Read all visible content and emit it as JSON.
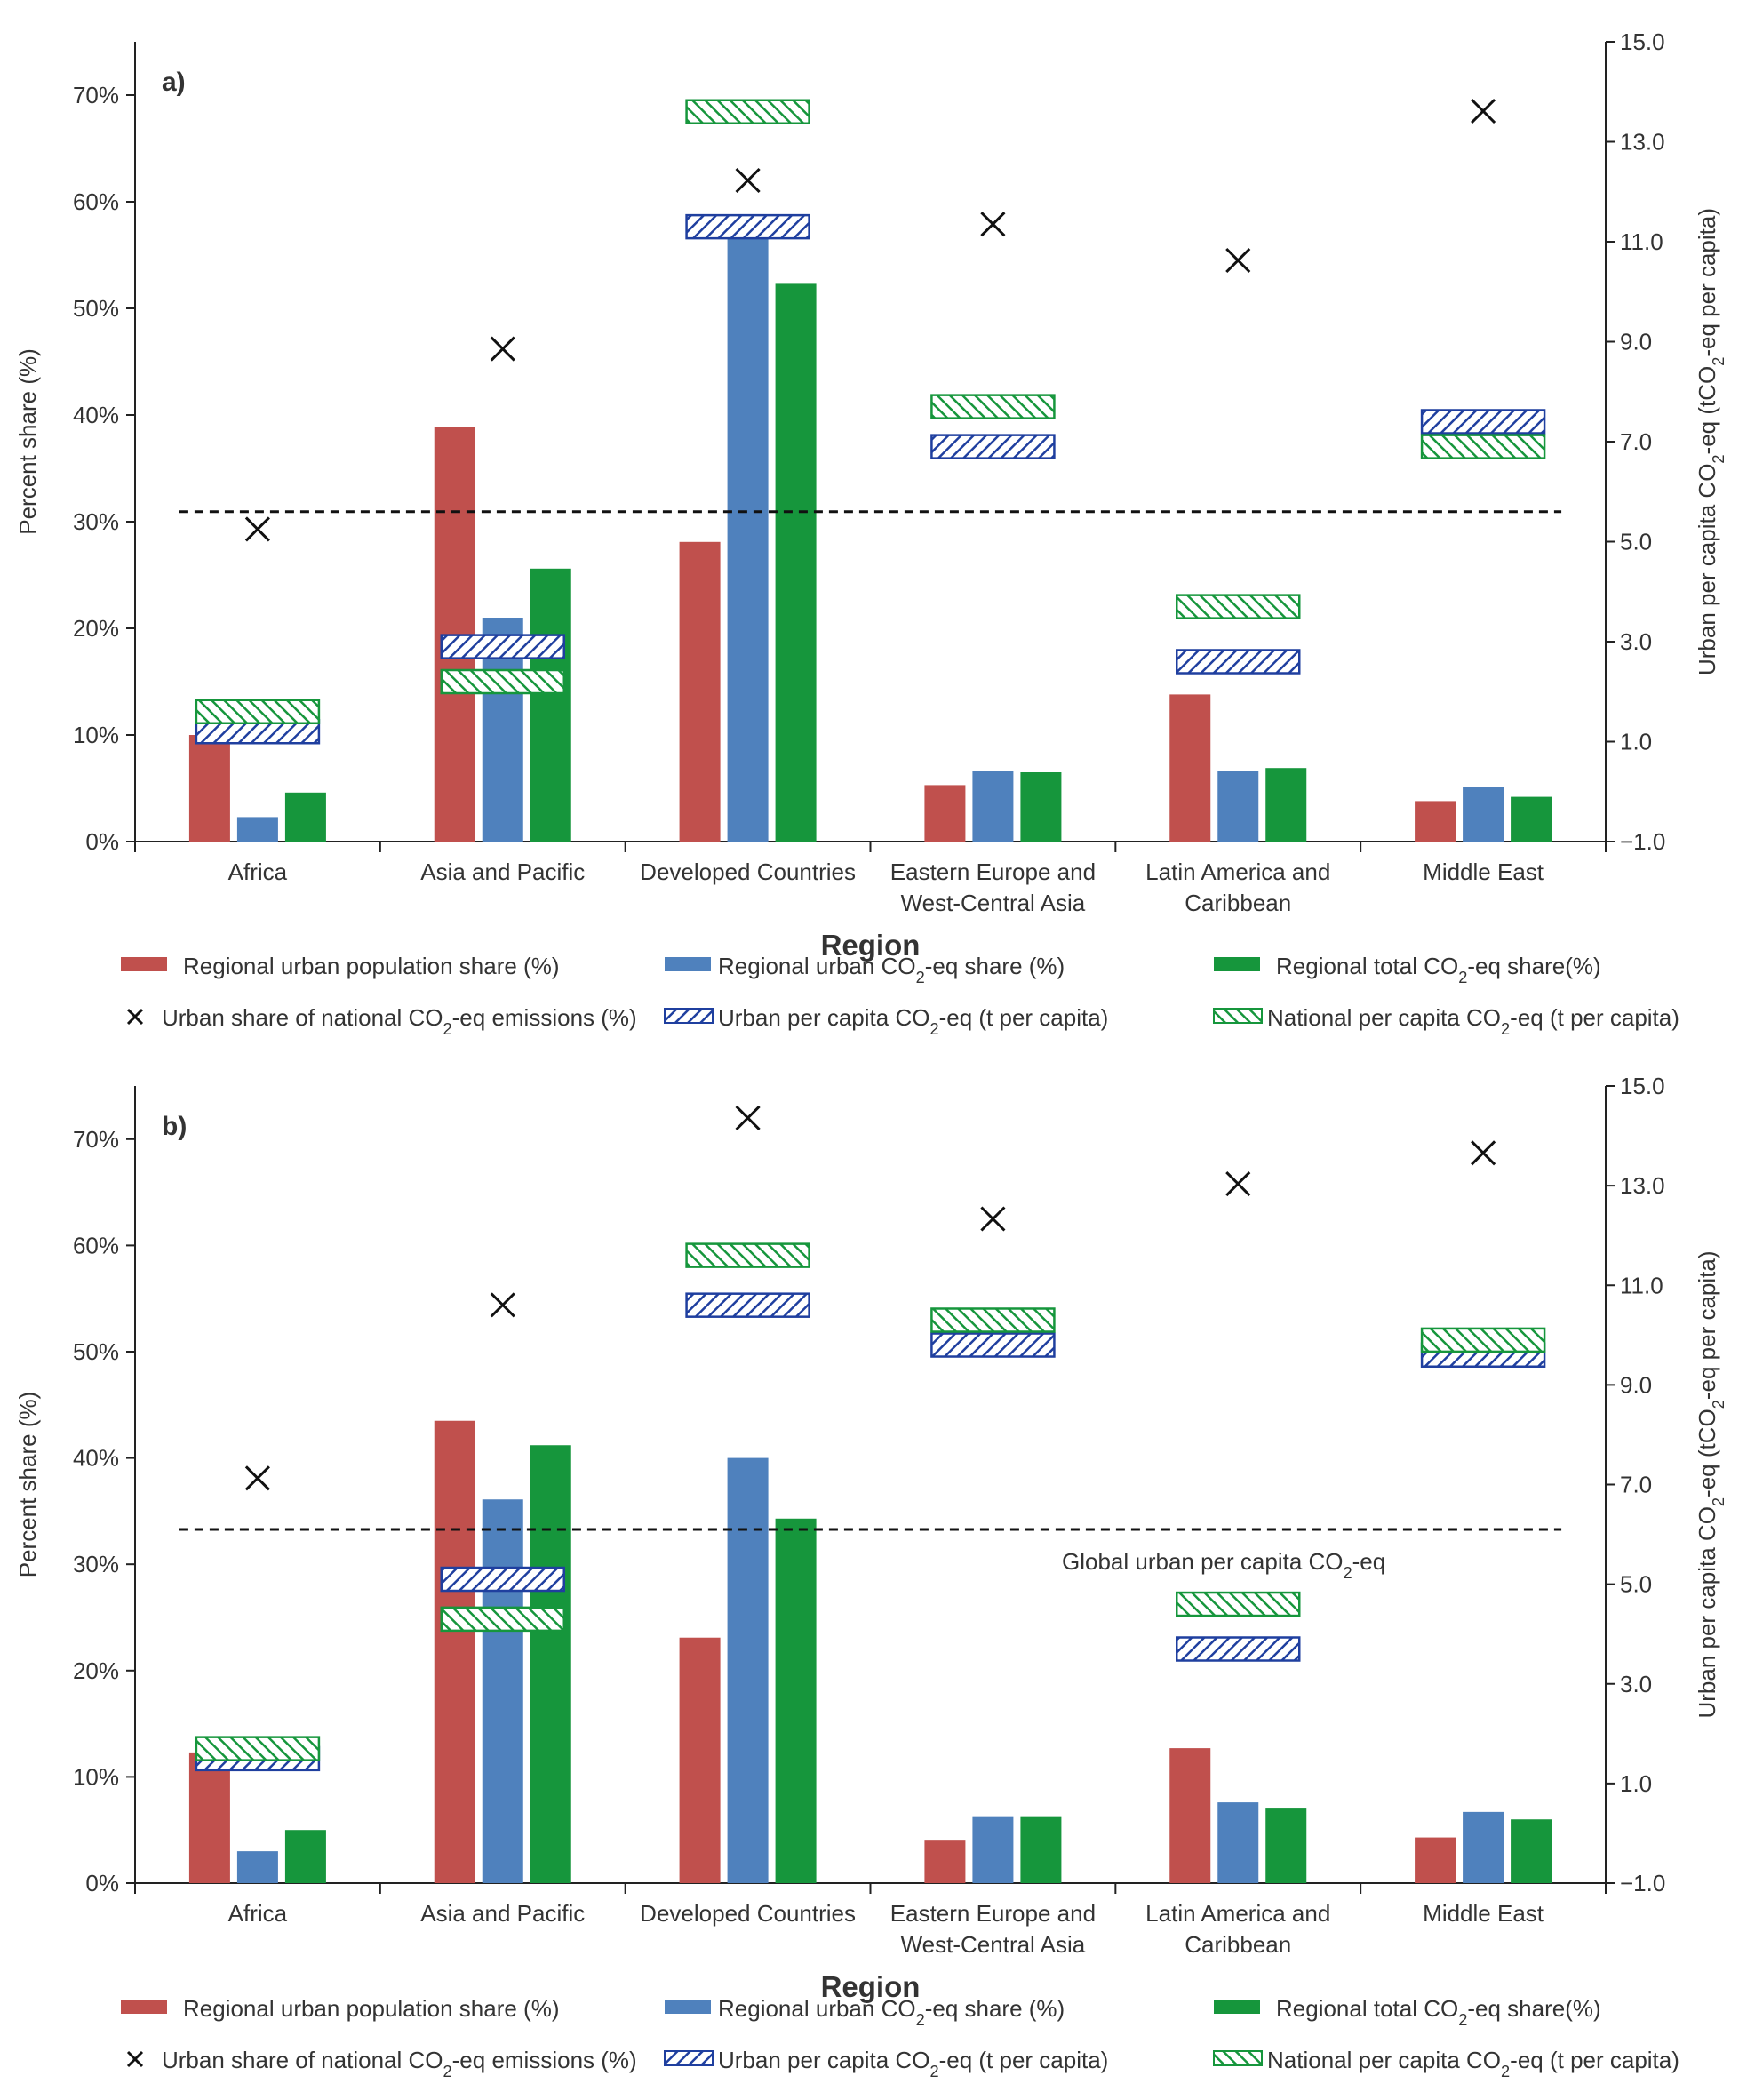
{
  "colors": {
    "population": "#c0504d",
    "urban_share": "#4f81bd",
    "total_share": "#16963c",
    "urban_pc_stroke": "#1f3f9f",
    "national_pc_stroke": "#16963c",
    "cross": "#111111",
    "axis": "#222222",
    "text": "#333333",
    "dashed": "#111111"
  },
  "legend": {
    "population": "Regional urban population share (%)",
    "urban_share": "Regional urban CO₂-eq share (%)",
    "total_share": "Regional total CO₂-eq share(%)",
    "urban_national_share": "Urban share of national CO₂-eq emissions (%)",
    "urban_pc": "Urban per capita CO₂-eq (t per capita)",
    "national_pc": "National per capita CO₂-eq (t per capita)"
  },
  "chart_data": [
    {
      "type": "bar",
      "panel_label": "a)",
      "categories": [
        "Africa",
        "Asia and Pacific",
        "Developed Countries",
        "Eastern Europe and|West-Central Asia",
        "Latin America and|Caribbean",
        "Middle East"
      ],
      "xlabel": "Region",
      "ylabel": "Percent share (%)",
      "y2label": "Urban per capita CO₂-eq (tCO₂-eq per capita)",
      "ylim": [
        0,
        75
      ],
      "yticks": [
        0,
        10,
        20,
        30,
        40,
        50,
        60,
        70
      ],
      "y2lim": [
        -1,
        15
      ],
      "y2ticks": [
        -1,
        1,
        3,
        5,
        7,
        9,
        11,
        13,
        15
      ],
      "y2ticklabels": [
        "−1.0",
        "1.0",
        "3.0",
        "5.0",
        "7.0",
        "9.0",
        "11.0",
        "13.0",
        "15.0"
      ],
      "series": [
        {
          "name": "Regional urban population share (%)",
          "key": "population",
          "values": [
            10.0,
            38.9,
            28.1,
            5.3,
            13.8,
            3.8
          ]
        },
        {
          "name": "Regional urban CO₂-eq share (%)",
          "key": "urban_share",
          "values": [
            2.3,
            21.0,
            57.5,
            6.6,
            6.6,
            5.1
          ]
        },
        {
          "name": "Regional total CO₂-eq share(%)",
          "key": "total_share",
          "values": [
            4.6,
            25.6,
            52.3,
            6.5,
            6.9,
            4.2
          ]
        }
      ],
      "urban_national_share": [
        29.3,
        46.2,
        62.0,
        57.9,
        54.5,
        68.5
      ],
      "urban_pc": [
        1.2,
        2.9,
        11.3,
        6.9,
        2.6,
        7.4
      ],
      "national_pc": [
        1.6,
        2.2,
        13.6,
        7.7,
        3.7,
        6.9
      ],
      "global_urban_pc": 5.6
    },
    {
      "type": "bar",
      "panel_label": "b)",
      "categories": [
        "Africa",
        "Asia and Pacific",
        "Developed Countries",
        "Eastern Europe and|West-Central Asia",
        "Latin America and|Caribbean",
        "Middle East"
      ],
      "xlabel": "Region",
      "ylabel": "Percent share (%)",
      "y2label": "Urban per capita CO₂-eq (tCO₂-eq per capita)",
      "ylim": [
        0,
        75
      ],
      "yticks": [
        0,
        10,
        20,
        30,
        40,
        50,
        60,
        70
      ],
      "y2lim": [
        -1,
        15
      ],
      "y2ticks": [
        -1,
        1,
        3,
        5,
        7,
        9,
        11,
        13,
        15
      ],
      "y2ticklabels": [
        "−1.0",
        "1.0",
        "3.0",
        "5.0",
        "7.0",
        "9.0",
        "11.0",
        "13.0",
        "15.0"
      ],
      "series": [
        {
          "name": "Regional urban population share (%)",
          "key": "population",
          "values": [
            12.3,
            43.5,
            23.1,
            4.0,
            12.7,
            4.3
          ]
        },
        {
          "name": "Regional urban CO₂-eq share (%)",
          "key": "urban_share",
          "values": [
            3.0,
            36.1,
            40.0,
            6.3,
            7.6,
            6.7
          ]
        },
        {
          "name": "Regional total CO₂-eq share(%)",
          "key": "total_share",
          "values": [
            5.0,
            41.2,
            34.3,
            6.3,
            7.1,
            6.0
          ]
        }
      ],
      "urban_national_share": [
        38.1,
        54.4,
        72.0,
        62.5,
        65.8,
        68.7
      ],
      "urban_pc": [
        1.5,
        5.1,
        10.6,
        9.8,
        3.7,
        9.6
      ],
      "national_pc": [
        1.7,
        4.3,
        11.6,
        10.3,
        4.6,
        9.9
      ],
      "global_urban_pc": 6.1,
      "annotation": "Global urban per capita CO₂-eq"
    }
  ]
}
